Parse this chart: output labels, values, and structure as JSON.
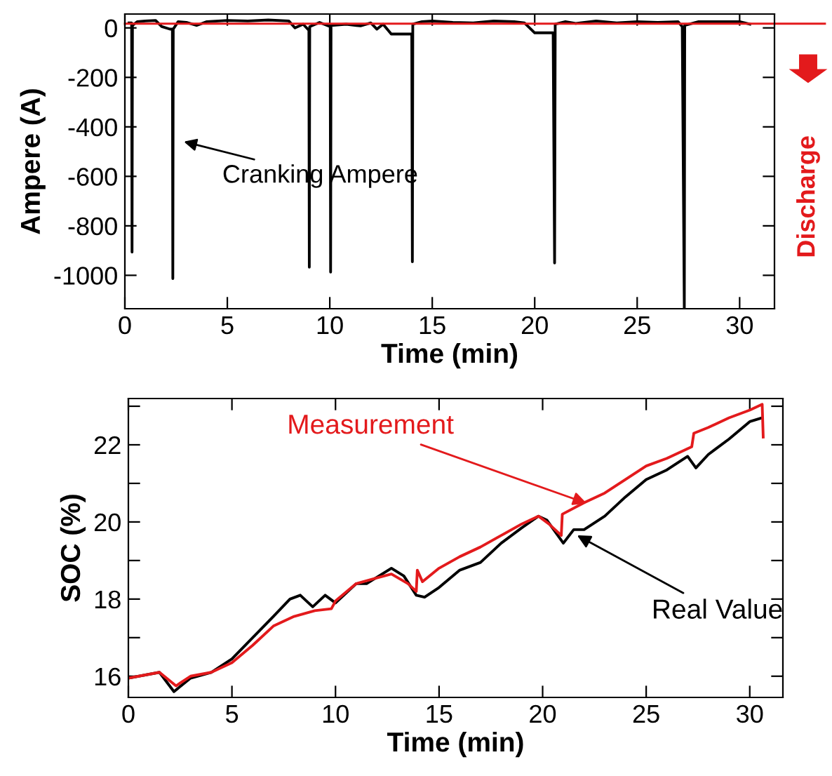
{
  "chart_data": [
    {
      "type": "line",
      "xlabel": "Time (min)",
      "ylabel": "Ampere (A)",
      "xlim": [
        0,
        31.7
      ],
      "ylim": [
        -1135,
        56
      ],
      "xticks": [
        0,
        5,
        10,
        15,
        20,
        25,
        30
      ],
      "yticks": [
        0,
        -200,
        -400,
        -600,
        -800,
        -1000
      ],
      "grid": false,
      "legend": false,
      "marker": "none",
      "line_style": "solid",
      "series": [
        {
          "color": "#000000",
          "x": [
            0.2,
            0.33,
            0.35,
            0.37,
            0.6,
            1,
            1.5,
            1.8,
            2.2,
            2.32,
            2.34,
            2.36,
            2.6,
            3,
            3.5,
            4,
            5,
            6,
            7,
            8,
            8.3,
            8.7,
            8.98,
            9.0,
            9.02,
            9.5,
            10.02,
            10.04,
            10.06,
            10.8,
            11.5,
            12,
            12.3,
            12.6,
            13,
            13.5,
            14.0,
            14.03,
            14.05,
            14.5,
            15,
            16,
            17,
            18,
            19,
            19.5,
            20,
            20.9,
            20.97,
            21.0,
            21.5,
            22,
            23,
            24,
            25,
            26,
            27,
            27.2,
            27.3,
            27.32,
            28,
            29,
            30,
            30.5
          ],
          "values": [
            20,
            20,
            -906,
            10,
            25,
            28,
            30,
            5,
            -5,
            -5,
            -1013,
            -5,
            25,
            22,
            10,
            25,
            30,
            28,
            32,
            28,
            0,
            15,
            -10,
            -967,
            5,
            22,
            5,
            -987,
            10,
            15,
            8,
            20,
            -5,
            15,
            -25,
            -25,
            -25,
            -945,
            15,
            25,
            28,
            22,
            20,
            28,
            25,
            20,
            -20,
            -20,
            -950,
            15,
            25,
            18,
            28,
            20,
            25,
            22,
            25,
            5,
            -1134,
            10,
            25,
            25,
            25,
            15
          ]
        }
      ],
      "ref_lines": [
        {
          "axis": "y",
          "value": 17,
          "label": "Discharge",
          "color": "#e31a1c",
          "line_style": "solid"
        }
      ],
      "annotations": [
        "Cranking Ampere"
      ]
    },
    {
      "type": "line",
      "xlabel": "Time (min)",
      "ylabel": "SOC (%)",
      "xlim": [
        0,
        31.6
      ],
      "ylim": [
        15.45,
        23.2
      ],
      "xticks": [
        0,
        5,
        10,
        15,
        20,
        25,
        30
      ],
      "yticks": [
        {
          "value": 16,
          "label": "16"
        },
        {
          "value": 17,
          "label": null
        },
        {
          "value": 18,
          "label": "18"
        },
        {
          "value": 19,
          "label": null
        },
        {
          "value": 20,
          "label": "20"
        },
        {
          "value": 21,
          "label": null
        },
        {
          "value": 22,
          "label": "22"
        },
        {
          "value": 23,
          "label": null
        }
      ],
      "grid": false,
      "legend": false,
      "marker": "none",
      "line_style": "solid",
      "series": [
        {
          "color": "#000000",
          "x": [
            0,
            1.5,
            2.2,
            3,
            4,
            5,
            6,
            7,
            7.8,
            8.3,
            8.9,
            9.5,
            10,
            11,
            11.5,
            12.7,
            13.3,
            13.9,
            14.3,
            15,
            16,
            17,
            18,
            19,
            19.8,
            20.2,
            21,
            21.5,
            22,
            23,
            24,
            25,
            26,
            27,
            27.4,
            28,
            29,
            30,
            30.6
          ],
          "values": [
            15.95,
            16.1,
            15.6,
            15.95,
            16.1,
            16.45,
            17.0,
            17.55,
            18.0,
            18.1,
            17.8,
            18.1,
            17.9,
            18.4,
            18.4,
            18.8,
            18.6,
            18.1,
            18.05,
            18.3,
            18.75,
            18.95,
            19.45,
            19.85,
            20.15,
            20.05,
            19.45,
            19.8,
            19.8,
            20.15,
            20.65,
            21.1,
            21.35,
            21.7,
            21.4,
            21.75,
            22.15,
            22.6,
            22.7
          ]
        },
        {
          "color": "#e31a1c",
          "x": [
            0,
            1.5,
            2.3,
            3,
            4,
            5,
            6,
            7,
            8,
            9,
            9.8,
            10,
            11,
            12,
            12.7,
            13.5,
            13.9,
            13.95,
            14.2,
            15,
            16,
            17,
            18,
            19,
            19.8,
            20.3,
            20.9,
            20.95,
            22,
            23,
            24,
            25,
            26,
            27.2,
            27.3,
            28,
            29,
            30,
            30.6,
            30.65
          ],
          "values": [
            15.95,
            16.1,
            15.75,
            16.0,
            16.1,
            16.35,
            16.8,
            17.3,
            17.55,
            17.7,
            17.75,
            17.95,
            18.4,
            18.55,
            18.65,
            18.4,
            18.2,
            18.75,
            18.45,
            18.8,
            19.1,
            19.35,
            19.65,
            19.95,
            20.15,
            19.95,
            19.65,
            20.2,
            20.5,
            20.75,
            21.1,
            21.45,
            21.65,
            21.95,
            22.3,
            22.45,
            22.7,
            22.9,
            23.05,
            22.2
          ]
        }
      ],
      "annotations": [
        {
          "text": "Measurement",
          "x": 22.3,
          "y": 20.45
        },
        {
          "text": "Real Value",
          "x": 21.5,
          "y": 19.7
        }
      ]
    }
  ]
}
